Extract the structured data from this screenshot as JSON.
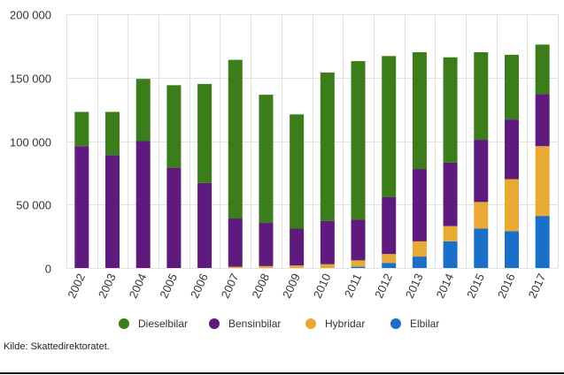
{
  "chart_data": {
    "type": "bar",
    "stacked": true,
    "categories": [
      "2002",
      "2003",
      "2004",
      "2005",
      "2006",
      "2007",
      "2008",
      "2009",
      "2010",
      "2011",
      "2012",
      "2013",
      "2014",
      "2015",
      "2016",
      "2017"
    ],
    "series": [
      {
        "name": "Elbilar",
        "color": "#1c6fc8",
        "values": [
          0,
          0,
          0,
          0,
          0,
          0,
          0,
          0,
          0,
          1000,
          4000,
          9000,
          21000,
          31000,
          29000,
          41000
        ]
      },
      {
        "name": "Hybridar",
        "color": "#e8a935",
        "values": [
          0,
          0,
          0,
          0,
          0,
          1000,
          1500,
          2000,
          3000,
          5000,
          7000,
          12000,
          12000,
          21000,
          41000,
          55000
        ]
      },
      {
        "name": "Bensinbilar",
        "color": "#5e1a7d",
        "values": [
          96000,
          89000,
          100000,
          79000,
          67000,
          38000,
          34000,
          29000,
          34000,
          32000,
          45000,
          57000,
          50000,
          49000,
          47000,
          41000
        ]
      },
      {
        "name": "Dieselbilar",
        "color": "#3a7d1a",
        "values": [
          27000,
          34000,
          49000,
          65000,
          78000,
          125000,
          101000,
          90000,
          117000,
          125000,
          111000,
          92000,
          83000,
          69000,
          51000,
          39000
        ]
      }
    ],
    "legend_order": [
      "Dieselbilar",
      "Bensinbilar",
      "Hybridar",
      "Elbilar"
    ],
    "y_ticks": [
      "0",
      "50 000",
      "100 000",
      "150 000",
      "200 000"
    ],
    "y_tick_values": [
      0,
      50000,
      100000,
      150000,
      200000
    ],
    "ylim": [
      0,
      200000
    ],
    "grid": true,
    "legend_position": "bottom",
    "xlabel": "",
    "ylabel": "",
    "title": ""
  },
  "source_note": "Kilde: Skattedirektoratet."
}
